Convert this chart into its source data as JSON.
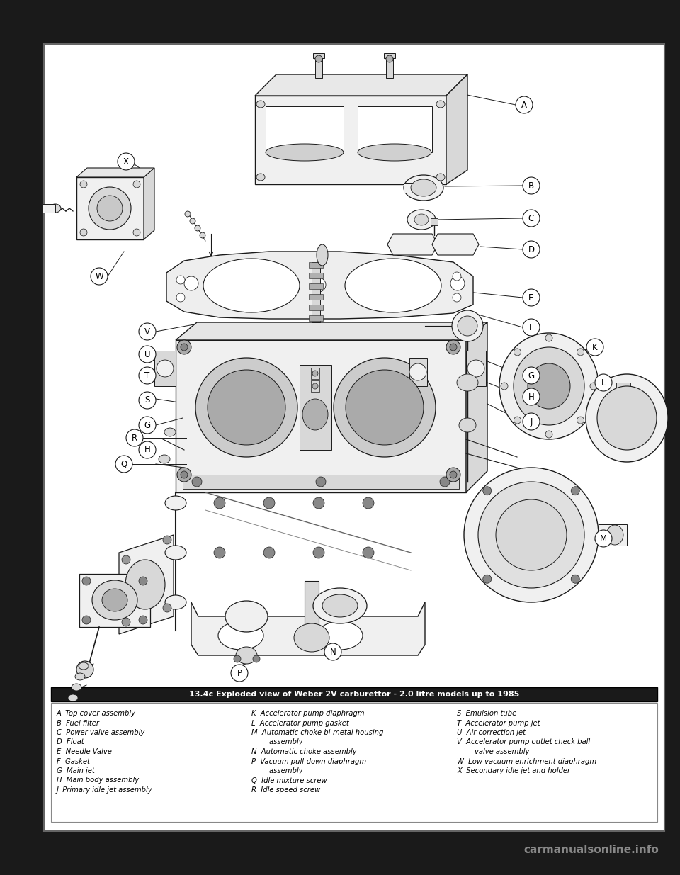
{
  "title": "13.4c Exploded view of Weber 2V carburettor - 2.0 litre models up to 1985",
  "background_color": "#1a1a1a",
  "page_bg": "#ffffff",
  "diagram_bg": "#ffffff",
  "caption_bg": "#1a1a1a",
  "caption_fg": "#ffffff",
  "watermark": "carmanualsonline.info",
  "watermark_color": "#888888",
  "legend_items_col1": [
    "A  Top cover assembly",
    "B  Fuel filter",
    "C  Power valve assembly",
    "D  Float",
    "E  Needle Valve",
    "F  Gasket",
    "G  Main jet",
    "H  Main body assembly",
    "J  Primary idle jet assembly"
  ],
  "legend_items_col2": [
    "K  Accelerator pump diaphragm",
    "L  Accelerator pump gasket",
    "M  Automatic choke bi-metal housing",
    "        assembly",
    "N  Automatic choke assembly",
    "P  Vacuum pull-down diaphragm",
    "        assembly",
    "Q  Idle mixture screw",
    "R  Idle speed screw"
  ],
  "legend_items_col3": [
    "S  Emulsion tube",
    "T  Accelerator pump jet",
    "U  Air correction jet",
    "V  Accelerator pump outlet check ball",
    "        valve assembly",
    "W  Low vacuum enrichment diaphragm",
    "X  Secondary idle jet and holder",
    "",
    ""
  ],
  "title_fontsize": 8.0,
  "legend_fontsize": 7.2,
  "label_fontsize": 8.5
}
